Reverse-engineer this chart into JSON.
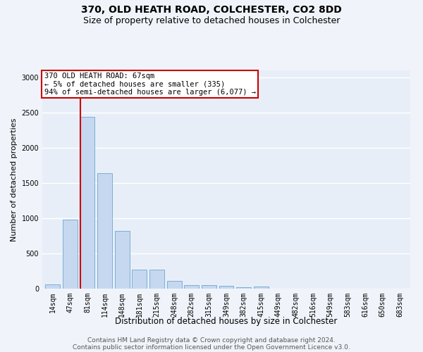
{
  "title1": "370, OLD HEATH ROAD, COLCHESTER, CO2 8DD",
  "title2": "Size of property relative to detached houses in Colchester",
  "xlabel": "Distribution of detached houses by size in Colchester",
  "ylabel": "Number of detached properties",
  "bar_labels": [
    "14sqm",
    "47sqm",
    "81sqm",
    "114sqm",
    "148sqm",
    "181sqm",
    "215sqm",
    "248sqm",
    "282sqm",
    "315sqm",
    "349sqm",
    "382sqm",
    "415sqm",
    "449sqm",
    "482sqm",
    "516sqm",
    "549sqm",
    "583sqm",
    "616sqm",
    "650sqm",
    "683sqm"
  ],
  "bar_values": [
    60,
    980,
    2440,
    1640,
    820,
    270,
    270,
    115,
    55,
    55,
    40,
    25,
    30,
    0,
    0,
    0,
    0,
    0,
    0,
    0,
    0
  ],
  "bar_color": "#c5d8f0",
  "bar_edge_color": "#7bafd4",
  "ylim": [
    0,
    3100
  ],
  "yticks": [
    0,
    500,
    1000,
    1500,
    2000,
    2500,
    3000
  ],
  "red_line_x": 1.588,
  "red_line_color": "#cc0000",
  "annotation_text": "370 OLD HEATH ROAD: 67sqm\n← 5% of detached houses are smaller (335)\n94% of semi-detached houses are larger (6,077) →",
  "annotation_box_color": "#ffffff",
  "annotation_border_color": "#cc0000",
  "footer1": "Contains HM Land Registry data © Crown copyright and database right 2024.",
  "footer2": "Contains public sector information licensed under the Open Government Licence v3.0.",
  "background_color": "#e8eef8",
  "fig_background_color": "#f0f4fa",
  "grid_color": "#ffffff",
  "title1_fontsize": 10,
  "title2_fontsize": 9,
  "xlabel_fontsize": 8.5,
  "ylabel_fontsize": 8,
  "tick_fontsize": 7,
  "annotation_fontsize": 7.5,
  "footer_fontsize": 6.5
}
